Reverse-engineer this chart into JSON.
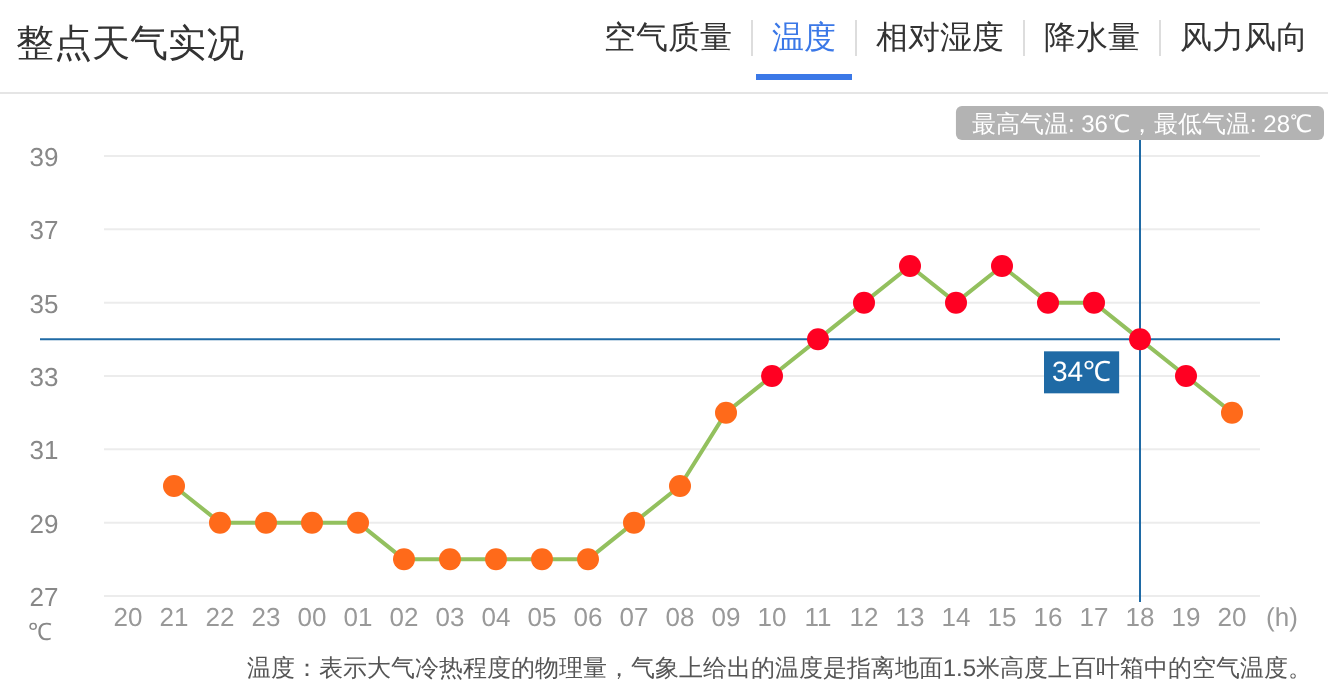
{
  "chart_data": {
    "type": "line",
    "title": "整点天气实况",
    "xlabel": "(h)",
    "ylabel": "℃",
    "categories": [
      "20",
      "21",
      "22",
      "23",
      "00",
      "01",
      "02",
      "03",
      "04",
      "05",
      "06",
      "07",
      "08",
      "09",
      "10",
      "11",
      "12",
      "13",
      "14",
      "15",
      "16",
      "17",
      "18",
      "19",
      "20"
    ],
    "series": [
      {
        "color": "#93c05e",
        "values": [
          null,
          30,
          29,
          29,
          29,
          29,
          28,
          28,
          28,
          28,
          28,
          29,
          30,
          32,
          33,
          34,
          35,
          36,
          35,
          36,
          35,
          35,
          34,
          33,
          32
        ],
        "colors": [
          null,
          "#ff6a1a",
          "#ff6a1a",
          "#ff6a1a",
          "#ff6a1a",
          "#ff6a1a",
          "#ff6a1a",
          "#ff6a1a",
          "#ff6a1a",
          "#ff6a1a",
          "#ff6a1a",
          "#ff6a1a",
          "#ff6a1a",
          "#ff6a1a",
          "#ff0022",
          "#ff0022",
          "#ff0022",
          "#ff0022",
          "#ff0022",
          "#ff0022",
          "#ff0022",
          "#ff0022",
          "#ff0022",
          "#ff0022",
          "#ff6a1a"
        ]
      }
    ],
    "ylim": [
      27,
      39
    ],
    "yticks": [
      27,
      29,
      31,
      33,
      35,
      37,
      39
    ],
    "grid": "y",
    "marker": "circle",
    "ref_lines": [
      {
        "axis": "y",
        "value": 34,
        "label": "34℃",
        "color": "#1f6aa5"
      },
      {
        "axis": "x",
        "value": "18",
        "color": "#1f6aa5"
      }
    ],
    "annotations": [
      "空气质量",
      "温度",
      "相对湿度",
      "降水量",
      "风力风向",
      "最高气温: 36℃，最低气温: 28℃",
      "温度：表示大气冷热程度的物理量，气象上给出的温度是指离地面1.5米高度上百叶箱中的空气温度。"
    ]
  }
}
